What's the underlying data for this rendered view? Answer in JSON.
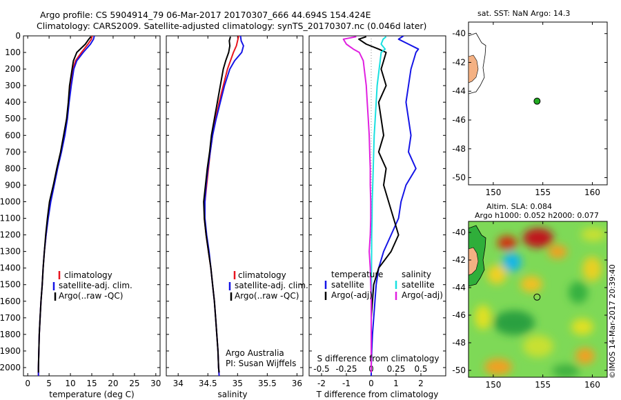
{
  "title_line1": "Argo profile: CS 5904914_79 06-Mar-2017 20170307_666 44.694S 154.424E",
  "title_line2": "Climatology: CARS2009. Satellite-adjusted climatology: synTS_20170307.nc (0.046d later)",
  "colors": {
    "climatology": "#e8141e",
    "satellite": "#1414e6",
    "argo": "#000000",
    "sal_satellite": "#18e0e0",
    "sal_argo": "#e020e0",
    "land": "#f4b183",
    "float_marker": "#22aa22"
  },
  "chart_data": [
    {
      "type": "line",
      "name": "temperature",
      "xlabel": "temperature (deg C)",
      "ylabel": "",
      "xlim": [
        -1,
        31
      ],
      "ylim": [
        2050,
        0
      ],
      "xticks": [
        0,
        5,
        10,
        15,
        20,
        25,
        30
      ],
      "yticks": [
        0,
        100,
        200,
        300,
        400,
        500,
        600,
        700,
        800,
        900,
        1000,
        1100,
        1200,
        1300,
        1400,
        1500,
        1600,
        1700,
        1800,
        1900,
        2000
      ],
      "legend": [
        "climatology",
        "satellite-adj. clim.",
        "Argo(..raw -QC)"
      ],
      "series": [
        {
          "name": "climatology",
          "color": "#e8141e",
          "depth": [
            0,
            20,
            50,
            100,
            150,
            200,
            300,
            400,
            500,
            600,
            700,
            800,
            900,
            1000,
            1100,
            1200,
            1300,
            1400,
            1500,
            1600,
            1700,
            1800,
            1900,
            2000,
            2050
          ],
          "values": [
            15.1,
            14.9,
            14.1,
            12.6,
            11.2,
            10.6,
            10.0,
            9.6,
            9.2,
            8.6,
            7.8,
            6.9,
            6.1,
            5.3,
            4.7,
            4.3,
            3.9,
            3.6,
            3.4,
            3.1,
            2.9,
            2.7,
            2.6,
            2.5,
            2.5
          ]
        },
        {
          "name": "satellite-adj. clim.",
          "color": "#1414e6",
          "depth": [
            0,
            20,
            50,
            100,
            150,
            200,
            300,
            400,
            500,
            600,
            700,
            800,
            900,
            1000,
            1100,
            1200,
            1300,
            1400,
            1500,
            1600,
            1700,
            1800,
            1900,
            2000,
            2050
          ],
          "values": [
            15.6,
            15.4,
            14.7,
            13.0,
            11.5,
            10.8,
            10.2,
            9.7,
            9.3,
            8.7,
            7.9,
            7.0,
            6.2,
            5.4,
            4.8,
            4.3,
            3.9,
            3.6,
            3.4,
            3.1,
            2.9,
            2.7,
            2.6,
            2.5,
            2.5
          ]
        },
        {
          "name": "Argo(..raw -QC)",
          "color": "#000000",
          "depth": [
            5,
            20,
            50,
            100,
            150,
            200,
            300,
            400,
            500,
            600,
            700,
            800,
            900,
            1000,
            1100,
            1200,
            1300,
            1400,
            1500,
            1600,
            1700,
            1800,
            1900,
            2000,
            2030
          ],
          "values": [
            14.8,
            14.3,
            13.5,
            11.5,
            10.7,
            10.4,
            9.8,
            9.5,
            9.1,
            8.4,
            7.7,
            6.8,
            6.0,
            5.1,
            4.6,
            4.2,
            3.9,
            3.6,
            3.4,
            3.1,
            2.9,
            2.7,
            2.6,
            2.5,
            2.5
          ]
        }
      ]
    },
    {
      "type": "line",
      "name": "salinity",
      "xlabel": "salinity",
      "ylabel": "",
      "xlim": [
        33.8,
        36.1
      ],
      "ylim": [
        2050,
        0
      ],
      "xticks": [
        34,
        34.5,
        35,
        35.5,
        36
      ],
      "legend": [
        "climatology",
        "satellite-adj. clim.",
        "Argo(..raw -QC)"
      ],
      "annotation": [
        "Argo Australia",
        "PI: Susan Wijffels"
      ],
      "series": [
        {
          "name": "climatology",
          "color": "#e8141e",
          "depth": [
            0,
            30,
            60,
            100,
            150,
            200,
            300,
            400,
            500,
            600,
            700,
            800,
            900,
            1000,
            1100,
            1200,
            1300,
            1400,
            1500,
            1600,
            1700,
            1800,
            1900,
            2000,
            2050
          ],
          "values": [
            35.02,
            35.0,
            34.98,
            34.93,
            34.88,
            34.83,
            34.76,
            34.69,
            34.63,
            34.58,
            34.54,
            34.51,
            34.48,
            34.45,
            34.44,
            34.47,
            34.51,
            34.55,
            34.58,
            34.61,
            34.63,
            34.65,
            34.67,
            34.68,
            34.69
          ]
        },
        {
          "name": "satellite-adj. clim.",
          "color": "#1414e6",
          "depth": [
            0,
            30,
            60,
            100,
            150,
            200,
            300,
            400,
            500,
            600,
            700,
            800,
            900,
            1000,
            1100,
            1200,
            1300,
            1400,
            1500,
            1600,
            1700,
            1800,
            1900,
            2000,
            2050
          ],
          "values": [
            35.05,
            35.06,
            35.1,
            35.07,
            34.95,
            34.87,
            34.78,
            34.71,
            34.64,
            34.58,
            34.54,
            34.5,
            34.47,
            34.45,
            34.45,
            34.48,
            34.52,
            34.55,
            34.58,
            34.61,
            34.63,
            34.65,
            34.67,
            34.68,
            34.69
          ]
        },
        {
          "name": "Argo(..raw -QC)",
          "color": "#000000",
          "depth": [
            5,
            30,
            60,
            100,
            150,
            200,
            300,
            400,
            500,
            600,
            700,
            800,
            900,
            1000,
            1100,
            1200,
            1300,
            1400,
            1500,
            1600,
            1700,
            1800,
            1900,
            2000,
            2030
          ],
          "values": [
            34.88,
            34.86,
            34.87,
            34.85,
            34.8,
            34.76,
            34.71,
            34.66,
            34.61,
            34.56,
            34.53,
            34.49,
            34.46,
            34.43,
            34.44,
            34.47,
            34.51,
            34.55,
            34.58,
            34.61,
            34.63,
            34.65,
            34.67,
            34.68,
            34.69
          ]
        }
      ]
    },
    {
      "type": "line",
      "name": "difference",
      "xlabel": "T difference from climatology",
      "xlabel_top": "S difference from climatology",
      "xlim": [
        -2.5,
        3.0
      ],
      "ylim": [
        2050,
        0
      ],
      "xticks_T": [
        -2,
        -1,
        0,
        1,
        2
      ],
      "xticks_S": [
        -0.5,
        -0.25,
        0,
        0.25,
        0.5
      ],
      "legend_T_title": "temperature",
      "legend_S_title": "salinity",
      "legend_T": [
        "satellite",
        "Argo(-adj)"
      ],
      "legend_S": [
        "satellite",
        "Argo(-adj)"
      ],
      "series": [
        {
          "name": "T satellite",
          "color": "#1414e6",
          "depth": [
            0,
            20,
            50,
            80,
            100,
            150,
            200,
            300,
            400,
            500,
            600,
            700,
            800,
            900,
            1000,
            1100,
            1200,
            1300,
            1400,
            1500,
            1600,
            1700,
            1800,
            1900,
            2000,
            2050
          ],
          "values": [
            1.3,
            1.1,
            1.5,
            1.9,
            1.8,
            1.7,
            1.6,
            1.5,
            1.4,
            1.5,
            1.6,
            1.5,
            1.8,
            1.4,
            1.2,
            1.1,
            0.8,
            0.5,
            0.3,
            0.2,
            0.15,
            0.1,
            0.05,
            0.02,
            0.0,
            0.0
          ]
        },
        {
          "name": "T Argo(-adj)",
          "color": "#000000",
          "depth": [
            5,
            20,
            50,
            80,
            100,
            150,
            200,
            300,
            400,
            500,
            600,
            700,
            800,
            900,
            1000,
            1100,
            1200,
            1300,
            1400,
            1500,
            1600,
            1700,
            1800,
            1900,
            2000,
            2030
          ],
          "values": [
            -0.2,
            -0.5,
            -0.2,
            0.3,
            0.6,
            0.5,
            0.4,
            0.6,
            0.3,
            0.4,
            0.5,
            0.3,
            0.6,
            0.5,
            0.7,
            0.9,
            1.1,
            0.8,
            0.3,
            0.1,
            0.05,
            0.0,
            0.0,
            0.0,
            0.0,
            0.0
          ]
        },
        {
          "name": "S satellite",
          "color": "#18e0e0",
          "depth": [
            5,
            20,
            50,
            80,
            100,
            150,
            200,
            300,
            400,
            500,
            600,
            700,
            800,
            900,
            1000,
            1100,
            1200,
            1300,
            1400,
            1500,
            1600,
            1700,
            1800,
            1900,
            2000,
            2030
          ],
          "values": [
            0.15,
            0.12,
            0.1,
            0.14,
            0.1,
            0.09,
            0.08,
            0.06,
            0.05,
            0.04,
            0.03,
            0.025,
            0.02,
            0.015,
            0.01,
            0.008,
            0.005,
            0.004,
            0.003,
            0.002,
            0.001,
            0.0,
            0.0,
            0.0,
            0.0,
            0.0
          ]
        },
        {
          "name": "S Argo(-adj)",
          "color": "#e020e0",
          "depth": [
            5,
            20,
            50,
            80,
            100,
            150,
            200,
            300,
            400,
            500,
            600,
            700,
            800,
            900,
            1000,
            1100,
            1200,
            1300,
            1400,
            1500,
            1600,
            1700,
            1800,
            1900,
            2000,
            2030
          ],
          "values": [
            -0.15,
            -0.28,
            -0.25,
            -0.18,
            -0.12,
            -0.08,
            -0.07,
            -0.05,
            -0.04,
            -0.03,
            -0.02,
            -0.015,
            -0.01,
            -0.01,
            -0.005,
            -0.005,
            -0.01,
            -0.02,
            -0.01,
            -0.005,
            0.0,
            0.0,
            0.0,
            0.0,
            0.0,
            0.0
          ]
        }
      ]
    },
    {
      "type": "scatter",
      "name": "sst-map",
      "title": "sat. SST: NaN Argo: 14.3",
      "xlim": [
        147.5,
        161.5
      ],
      "ylim": [
        -50.5,
        -39.2
      ],
      "xticks": [
        150,
        155,
        160
      ],
      "yticks": [
        -40,
        -42,
        -44,
        -46,
        -48,
        -50
      ],
      "points": [
        {
          "x": 154.42,
          "y": -44.69
        }
      ]
    },
    {
      "type": "heatmap",
      "name": "sla-map",
      "title": "Altim. SLA: 0.084",
      "subtitle": "Argo h1000: 0.052 h2000: 0.077",
      "xlim": [
        147.5,
        161.5
      ],
      "ylim": [
        -50.5,
        -39.2
      ],
      "xticks": [
        150,
        155,
        160
      ],
      "yticks": [
        -40,
        -42,
        -44,
        -46,
        -48,
        -50
      ],
      "points": [
        {
          "x": 154.42,
          "y": -44.69
        }
      ]
    }
  ],
  "credit": "©IMOS 14-Mar-2017 20:39:40"
}
